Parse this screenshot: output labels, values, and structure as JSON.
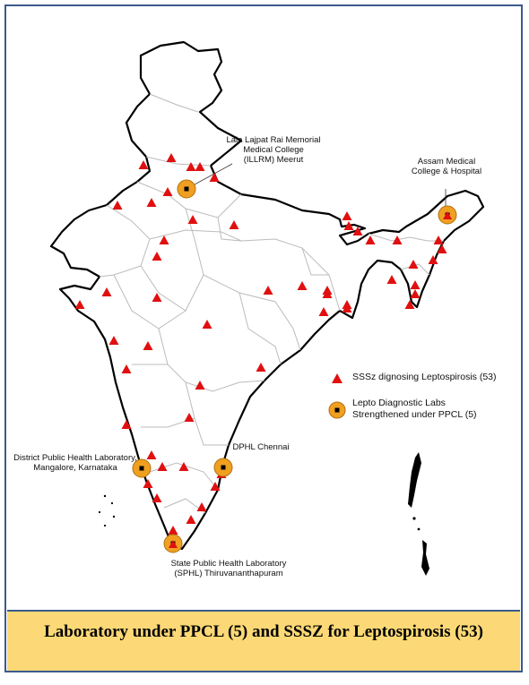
{
  "labels": {
    "meerut": "Lala Lajpat Rai Memorial\nMedical College\n(ILLRM) Meerut",
    "assam": "Assam Medical\nCollege & Hospital",
    "mangalore": "District Public Health Laboratory,\nMangalore, Karnataka",
    "chennai": "DPHL Chennai",
    "thiruvananthapuram": "State Public Health Laboratory\n(SPHL) Thiruvananthapuram"
  },
  "legend": {
    "sssz": "SSSz dignosing Leptospirosis (53)",
    "ppcl": "Lepto Diagnostic Labs\nStrengthened under PPCL (5)"
  },
  "caption": "Laboratory under PPCL (5) and SSSZ for Leptospirosis (53)",
  "colors": {
    "triangle": "#e01010",
    "lab_circle": "#f0a020",
    "border": "#3a5a8c",
    "caption_bg": "#fcd976"
  },
  "icons": {
    "sssz_marker": "red-triangle-icon",
    "ppcl_marker": "orange-circle-icon"
  }
}
